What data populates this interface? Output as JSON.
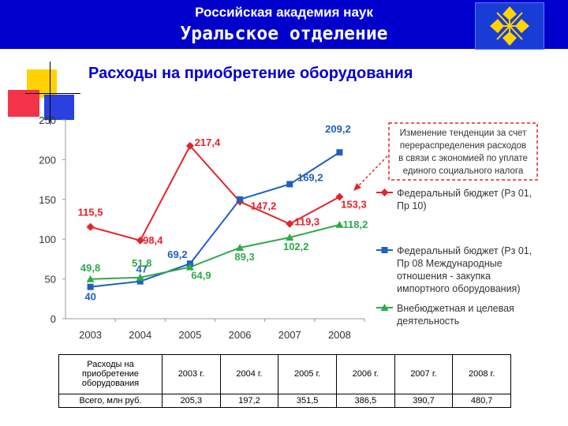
{
  "header": {
    "line1": "Российская академия наук",
    "line2": "Уральское отделение"
  },
  "slide_title": "Расходы на приобретение оборудования",
  "colors": {
    "header_bg": "#0000cc",
    "title": "#0000cc",
    "federal_01_10": "#e3242b",
    "federal_01_08": "#1f5fbf",
    "extra_budget": "#2eaa4a",
    "callout_border": "#e3242b"
  },
  "chart_data": {
    "type": "line",
    "categories": [
      "2003",
      "2004",
      "2005",
      "2006",
      "2007",
      "2008"
    ],
    "y_ticks": [
      "0",
      "50",
      "100",
      "150",
      "200",
      "250"
    ],
    "ylim": [
      0,
      250
    ],
    "grid": false,
    "legend_position": "right",
    "series": [
      {
        "name": "Федеральный бюджет (Рз 01, Пр 10)",
        "color": "#e3242b",
        "marker": "diamond",
        "values": [
          115.5,
          98.4,
          217.4,
          147.2,
          119.3,
          153.3
        ],
        "labels": [
          "115,5",
          "98,4",
          "217,4",
          "147,2",
          "119,3",
          "153,3"
        ]
      },
      {
        "name": "Федеральный бюджет (Рз 01, Пр 08 Международные отношения - закупка импортного оборудования)",
        "color": "#1f5fbf",
        "marker": "square",
        "values": [
          40,
          47,
          69.2,
          150,
          169.2,
          209.2
        ],
        "labels": [
          "40",
          "47",
          "69,2",
          "",
          "169,2",
          "209,2"
        ]
      },
      {
        "name": "Внебюджетная и целевая деятельность",
        "color": "#2eaa4a",
        "marker": "triangle",
        "values": [
          49.8,
          51.8,
          64.9,
          89.3,
          102.2,
          118.2
        ],
        "labels": [
          "49,8",
          "51,8",
          "64,9",
          "89,3",
          "102,2",
          "118,2"
        ]
      }
    ],
    "legend": [
      [
        "Федеральный бюджет (Рз 01,",
        "Пр 10)"
      ],
      [
        "Федеральный бюджет (Рз 01,",
        "Пр 08 Международные",
        "отношения - закупка",
        "импортного оборудования)"
      ],
      [
        "Внебюджетная и целевая",
        "деятельность"
      ]
    ],
    "annotation": [
      "Изменение тенденции за счет",
      "перераспределения расходов",
      "в связи с экономией по уплате",
      "единого социального налога"
    ]
  },
  "table": {
    "row1_label": [
      "Расходы на",
      "приобретение",
      "оборудования"
    ],
    "row2_label": "Всего, млн руб.",
    "years": [
      "2003 г.",
      "2004 г.",
      "2005 г.",
      "2006 г.",
      "2007 г.",
      "2008 г."
    ],
    "totals": [
      "205,3",
      "197,2",
      "351,5",
      "386,5",
      "390,7",
      "480,7"
    ]
  }
}
